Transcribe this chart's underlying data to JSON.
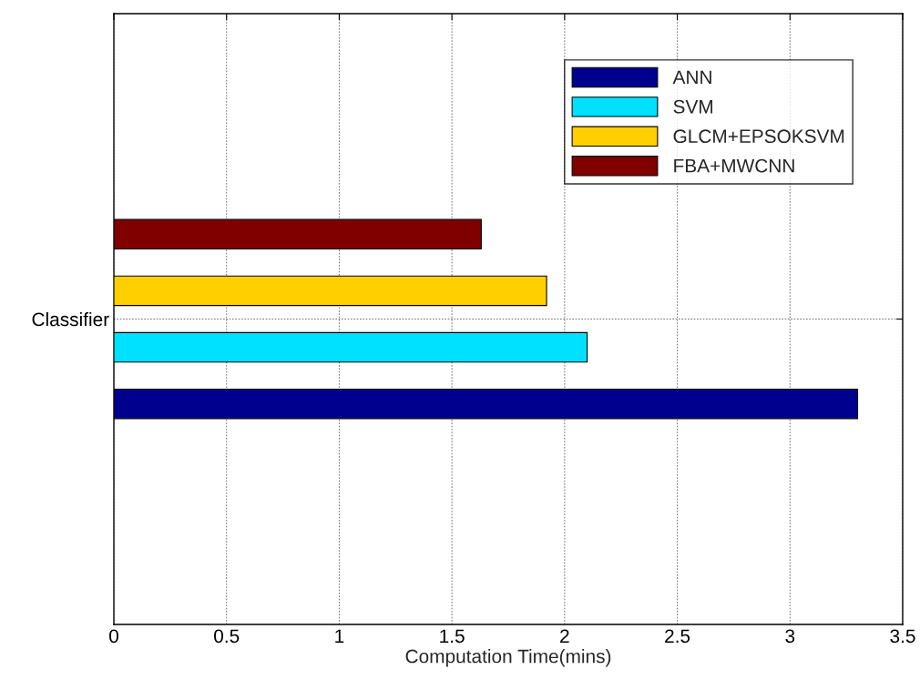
{
  "chart_data": {
    "type": "bar",
    "orientation": "horizontal",
    "xlabel": "Computation Time(mins)",
    "categories": [
      "Classifier"
    ],
    "series": [
      {
        "name": "ANN",
        "color": "#00008f",
        "values": [
          3.3
        ]
      },
      {
        "name": "SVM",
        "color": "#00e0ff",
        "values": [
          2.1
        ]
      },
      {
        "name": "GLCM+EPSOKSVM",
        "color": "#ffcf00",
        "values": [
          1.92
        ]
      },
      {
        "name": "FBA+MWCNN",
        "color": "#800000",
        "values": [
          1.63
        ]
      }
    ],
    "xlim": [
      0,
      3.5
    ],
    "xticks": [
      0,
      0.5,
      1,
      1.5,
      2,
      2.5,
      3,
      3.5
    ],
    "grid": true,
    "legend": "top right"
  }
}
